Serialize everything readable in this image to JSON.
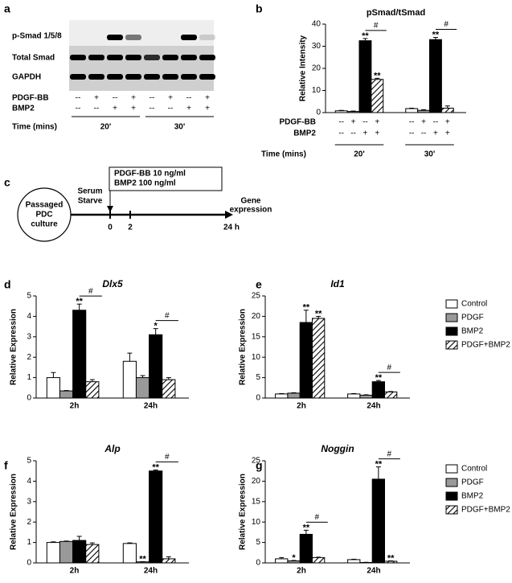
{
  "panel_labels": [
    "a",
    "b",
    "c",
    "d",
    "e",
    "f",
    "g"
  ],
  "blot": {
    "rows": [
      "p-Smad 1/5/8",
      "Total Smad",
      "GAPDH"
    ],
    "conditions": [
      {
        "label": "PDGF-BB",
        "marks": [
          "--",
          "+",
          "--",
          "+",
          "--",
          "+",
          "--",
          "+"
        ]
      },
      {
        "label": "BMP2",
        "marks": [
          "--",
          "--",
          "+",
          "+",
          "--",
          "--",
          "+",
          "+"
        ]
      }
    ],
    "time_label": "Time (mins)",
    "times": [
      "20'",
      "30'"
    ]
  },
  "timeline": {
    "start": [
      "Passaged",
      "PDC",
      "culture"
    ],
    "step": [
      "Serum",
      "Starve"
    ],
    "treatment": [
      "PDGF-BB  10 ng/ml",
      "BMP2     100 ng/ml"
    ],
    "ticks": [
      "0",
      "2",
      "24 h"
    ],
    "end": [
      "Gene",
      "expression"
    ]
  },
  "chart_data": [
    {
      "type": "bar",
      "title": "pSmad/tSmad",
      "ylabel": "Relative Intensity",
      "categories": [
        "20'",
        "30'"
      ],
      "series": [
        {
          "color": "#ffffff",
          "values": [
            0.8,
            1.8
          ],
          "errors": [
            0.2,
            0.2
          ]
        },
        {
          "color": "#999999",
          "values": [
            0.5,
            1
          ],
          "errors": [
            0.2,
            0.3
          ]
        },
        {
          "color": "#000000",
          "values": [
            32.5,
            33
          ],
          "errors": [
            1,
            1
          ]
        },
        {
          "color": "#ffffff",
          "hatch": true,
          "values": [
            15,
            2
          ],
          "errors": [
            0.5,
            1
          ]
        }
      ],
      "ylim": [
        0,
        40
      ],
      "yticks": [
        0,
        10,
        20,
        30,
        40
      ],
      "conditions": [
        {
          "label": "PDGF-BB",
          "marks": [
            "--",
            "+",
            "--",
            "+",
            "--",
            "+",
            "--",
            "+"
          ]
        },
        {
          "label": "BMP2",
          "marks": [
            "--",
            "--",
            "+",
            "+",
            "--",
            "--",
            "+",
            "+"
          ]
        }
      ],
      "time_label": "Time (mins)",
      "stars": [
        {
          "text": "**",
          "series": 2,
          "category": 0
        },
        {
          "text": "**",
          "series": 3,
          "category": 0
        },
        {
          "text": "**",
          "series": 2,
          "category": 1
        }
      ],
      "brackets": [
        {
          "text": "#",
          "category": 0
        },
        {
          "text": "#",
          "category": 1
        }
      ]
    },
    {
      "type": "bar",
      "title": "Dlx5",
      "title_italic": true,
      "ylabel": "Relative Expression",
      "categories": [
        "2h",
        "24h"
      ],
      "series": [
        {
          "name": "Control",
          "color": "#ffffff",
          "values": [
            1,
            1.8
          ],
          "errors": [
            0.25,
            0.4
          ]
        },
        {
          "name": "PDGF",
          "color": "#999999",
          "values": [
            0.35,
            1.0
          ],
          "errors": [
            0.02,
            0.1
          ]
        },
        {
          "name": "BMP2",
          "color": "#000000",
          "values": [
            4.3,
            3.1
          ],
          "errors": [
            0.3,
            0.3
          ]
        },
        {
          "name": "PDGF+BMP2",
          "color": "#ffffff",
          "hatch": true,
          "values": [
            0.8,
            0.9
          ],
          "errors": [
            0.1,
            0.1
          ]
        }
      ],
      "ylim": [
        0,
        5
      ],
      "yticks": [
        0,
        1,
        2,
        3,
        4,
        5
      ],
      "legend": false,
      "stars": [
        {
          "text": "**",
          "series": 2,
          "category": 0
        },
        {
          "text": "*",
          "series": 2,
          "category": 1
        }
      ],
      "brackets": [
        {
          "text": "#",
          "category": 0
        },
        {
          "text": "#",
          "category": 1
        }
      ]
    },
    {
      "type": "bar",
      "title": "Id1",
      "title_italic": true,
      "ylabel": "Relative Expression",
      "categories": [
        "2h",
        "24h"
      ],
      "series": [
        {
          "name": "Control",
          "color": "#ffffff",
          "values": [
            1,
            1
          ],
          "errors": [
            0.1,
            0.1
          ]
        },
        {
          "name": "PDGF",
          "color": "#999999",
          "values": [
            1.2,
            0.7
          ],
          "errors": [
            0.1,
            0.1
          ]
        },
        {
          "name": "BMP2",
          "color": "#000000",
          "values": [
            18.5,
            4
          ],
          "errors": [
            3,
            0.3
          ]
        },
        {
          "name": "PDGF+BMP2",
          "color": "#ffffff",
          "hatch": true,
          "values": [
            19.5,
            1.5
          ],
          "errors": [
            0.5,
            0.1
          ]
        }
      ],
      "ylim": [
        0,
        25
      ],
      "yticks": [
        0,
        5,
        10,
        15,
        20,
        25
      ],
      "legend": true,
      "stars": [
        {
          "text": "**",
          "series": 2,
          "category": 0
        },
        {
          "text": "**",
          "series": 3,
          "category": 0
        },
        {
          "text": "**",
          "series": 2,
          "category": 1
        }
      ],
      "brackets": [
        {
          "text": "#",
          "category": 1
        }
      ]
    },
    {
      "type": "bar",
      "title": "Alp",
      "title_italic": true,
      "ylabel": "Relative Expression",
      "categories": [
        "2h",
        "24h"
      ],
      "series": [
        {
          "name": "Control",
          "color": "#ffffff",
          "values": [
            1,
            0.95
          ],
          "errors": [
            0.03,
            0.03
          ]
        },
        {
          "name": "PDGF",
          "color": "#999999",
          "values": [
            1.05,
            0.05
          ],
          "errors": [
            0.02,
            0.01
          ]
        },
        {
          "name": "BMP2",
          "color": "#000000",
          "values": [
            1.1,
            4.5
          ],
          "errors": [
            0.2,
            0.05
          ]
        },
        {
          "name": "PDGF+BMP2",
          "color": "#ffffff",
          "hatch": true,
          "values": [
            0.9,
            0.2
          ],
          "errors": [
            0.08,
            0.1
          ]
        }
      ],
      "ylim": [
        0,
        5
      ],
      "yticks": [
        0,
        1,
        2,
        3,
        4,
        5
      ],
      "legend": false,
      "stars": [
        {
          "text": "**",
          "series": 1,
          "category": 1
        },
        {
          "text": "**",
          "series": 2,
          "category": 1
        }
      ],
      "brackets": [
        {
          "text": "#",
          "category": 1
        }
      ]
    },
    {
      "type": "bar",
      "title": "Noggin",
      "title_italic": true,
      "ylabel": "Relative Expression",
      "categories": [
        "2h",
        "24h"
      ],
      "series": [
        {
          "name": "Control",
          "color": "#ffffff",
          "values": [
            1,
            0.8
          ],
          "errors": [
            0.3,
            0.1
          ]
        },
        {
          "name": "PDGF",
          "color": "#999999",
          "values": [
            0.5,
            0.1
          ],
          "errors": [
            0.1,
            0.05
          ]
        },
        {
          "name": "BMP2",
          "color": "#000000",
          "values": [
            7,
            20.5
          ],
          "errors": [
            1,
            3
          ]
        },
        {
          "name": "PDGF+BMP2",
          "color": "#ffffff",
          "hatch": true,
          "values": [
            1.3,
            0.4
          ],
          "errors": [
            0.1,
            0.1
          ]
        }
      ],
      "ylim": [
        0,
        25
      ],
      "yticks": [
        0,
        5,
        10,
        15,
        20,
        25
      ],
      "legend": true,
      "stars": [
        {
          "text": "*",
          "series": 1,
          "category": 0
        },
        {
          "text": "**",
          "series": 2,
          "category": 0
        },
        {
          "text": "**",
          "series": 2,
          "category": 1
        },
        {
          "text": "**",
          "series": 3,
          "category": 1
        }
      ],
      "brackets": [
        {
          "text": "#",
          "category": 0
        },
        {
          "text": "#",
          "category": 1
        }
      ]
    }
  ]
}
